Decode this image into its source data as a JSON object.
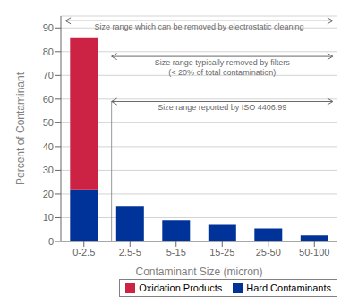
{
  "chart_data": {
    "type": "bar",
    "stacked": true,
    "categories": [
      "0-2.5",
      "2.5-5",
      "5-15",
      "15-25",
      "25-50",
      "50-100"
    ],
    "series": [
      {
        "name": "Hard Contaminants",
        "color": "#003399",
        "values": [
          22,
          15,
          9,
          7,
          5.5,
          2.5
        ]
      },
      {
        "name": "Oxidation Products",
        "color": "#cc2244",
        "values": [
          64,
          0,
          0,
          0,
          0,
          0
        ]
      }
    ],
    "xlabel": "Contaminant Size (micron)",
    "ylabel": "Percent of Contaminant",
    "ylim": [
      0,
      95
    ],
    "yticks": [
      0,
      10,
      20,
      30,
      40,
      50,
      60,
      70,
      80,
      90
    ],
    "grid": true,
    "legend": "lower right",
    "annotations": [
      "Size range which can be removed by electrostatic cleaning",
      "Size range typically removed by filters\n(< 20% of total contamination)",
      "Size range reported by ISO 4406:99"
    ]
  }
}
